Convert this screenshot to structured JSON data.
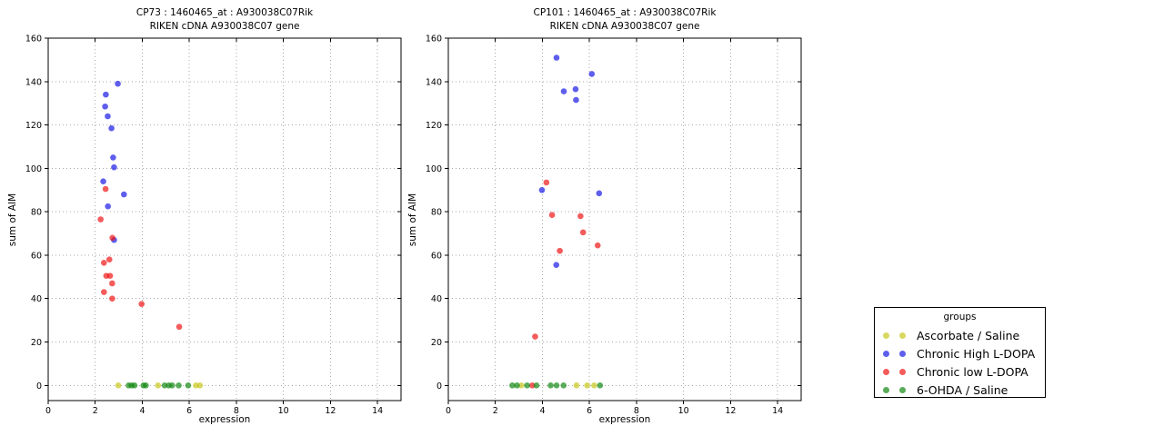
{
  "figure": {
    "legend": {
      "title": "groups",
      "entries": [
        {
          "label": "Ascorbate / Saline",
          "color": "#c8c81e"
        },
        {
          "label": "Chronic High L-DOPA",
          "color": "#1a1ae6"
        },
        {
          "label": "Chronic low L-DOPA",
          "color": "#f01616"
        },
        {
          "label": "6-OHDA / Saline",
          "color": "#128912"
        }
      ]
    }
  },
  "chart_data": [
    {
      "type": "scatter",
      "title_line1": "CP73 : 1460465_at : A930038C07Rik",
      "title_line2": "RIKEN cDNA A930038C07 gene",
      "xlabel": "expression",
      "ylabel": "sum of AIM",
      "xlim": [
        0,
        15
      ],
      "ylim": [
        -7,
        160
      ],
      "xticks": [
        0,
        2,
        4,
        6,
        8,
        10,
        12,
        14
      ],
      "yticks": [
        0,
        20,
        40,
        60,
        80,
        100,
        120,
        140,
        160
      ],
      "grid": true,
      "marker_alpha": 0.7,
      "series": [
        {
          "name": "Ascorbate / Saline",
          "color": "#c8c81e",
          "points": [
            [
              2.98,
              0
            ],
            [
              4.67,
              0
            ],
            [
              6.28,
              0
            ],
            [
              6.45,
              0
            ]
          ]
        },
        {
          "name": "Chronic High L-DOPA",
          "color": "#1a1ae6",
          "points": [
            [
              2.96,
              139
            ],
            [
              2.45,
              134
            ],
            [
              2.42,
              128.5
            ],
            [
              2.53,
              124
            ],
            [
              2.69,
              118.5
            ],
            [
              2.76,
              105
            ],
            [
              2.8,
              100.5
            ],
            [
              2.34,
              94
            ],
            [
              3.22,
              88
            ],
            [
              2.54,
              82.5
            ],
            [
              2.8,
              67
            ]
          ]
        },
        {
          "name": "Chronic low L-DOPA",
          "color": "#f01616",
          "points": [
            [
              2.44,
              90.5
            ],
            [
              2.23,
              76.5
            ],
            [
              2.73,
              68
            ],
            [
              2.6,
              58
            ],
            [
              2.37,
              56.5
            ],
            [
              2.47,
              50.5
            ],
            [
              2.63,
              50.5
            ],
            [
              2.72,
              47
            ],
            [
              2.37,
              43
            ],
            [
              2.72,
              40
            ],
            [
              3.97,
              37.5
            ],
            [
              5.57,
              27
            ]
          ]
        },
        {
          "name": "6-OHDA / Saline",
          "color": "#128912",
          "points": [
            [
              3.42,
              0
            ],
            [
              3.55,
              0
            ],
            [
              3.67,
              0
            ],
            [
              4.05,
              0
            ],
            [
              4.15,
              0
            ],
            [
              4.95,
              0
            ],
            [
              5.13,
              0
            ],
            [
              5.27,
              0
            ],
            [
              5.55,
              0
            ],
            [
              5.95,
              0
            ]
          ]
        }
      ]
    },
    {
      "type": "scatter",
      "title_line1": "CP101 : 1460465_at : A930038C07Rik",
      "title_line2": "RIKEN cDNA A930038C07 gene",
      "xlabel": "expression",
      "ylabel": "sum of AIM",
      "xlim": [
        0,
        15
      ],
      "ylim": [
        -7,
        160
      ],
      "xticks": [
        0,
        2,
        4,
        6,
        8,
        10,
        12,
        14
      ],
      "yticks": [
        0,
        20,
        40,
        60,
        80,
        100,
        120,
        140,
        160
      ],
      "grid": true,
      "marker_alpha": 0.7,
      "series": [
        {
          "name": "Ascorbate / Saline",
          "color": "#c8c81e",
          "points": [
            [
              3.11,
              0
            ],
            [
              5.45,
              0
            ],
            [
              5.9,
              0
            ],
            [
              6.2,
              0
            ]
          ]
        },
        {
          "name": "Chronic High L-DOPA",
          "color": "#1a1ae6",
          "points": [
            [
              4.6,
              151
            ],
            [
              6.1,
              143.5
            ],
            [
              5.41,
              136.5
            ],
            [
              4.91,
              135.5
            ],
            [
              5.43,
              131.5
            ],
            [
              3.98,
              90
            ],
            [
              6.41,
              88.5
            ],
            [
              4.59,
              55.5
            ]
          ]
        },
        {
          "name": "Chronic low L-DOPA",
          "color": "#f01616",
          "points": [
            [
              4.17,
              93.5
            ],
            [
              4.41,
              78.5
            ],
            [
              5.62,
              78
            ],
            [
              5.73,
              70.5
            ],
            [
              6.35,
              64.5
            ],
            [
              4.74,
              62
            ],
            [
              3.69,
              22.5
            ],
            [
              3.57,
              0
            ]
          ]
        },
        {
          "name": "6-OHDA / Saline",
          "color": "#128912",
          "points": [
            [
              2.72,
              0
            ],
            [
              2.92,
              0
            ],
            [
              3.35,
              0
            ],
            [
              3.75,
              0
            ],
            [
              4.35,
              0
            ],
            [
              4.6,
              0
            ],
            [
              4.9,
              0
            ],
            [
              6.45,
              0
            ]
          ]
        }
      ]
    }
  ]
}
